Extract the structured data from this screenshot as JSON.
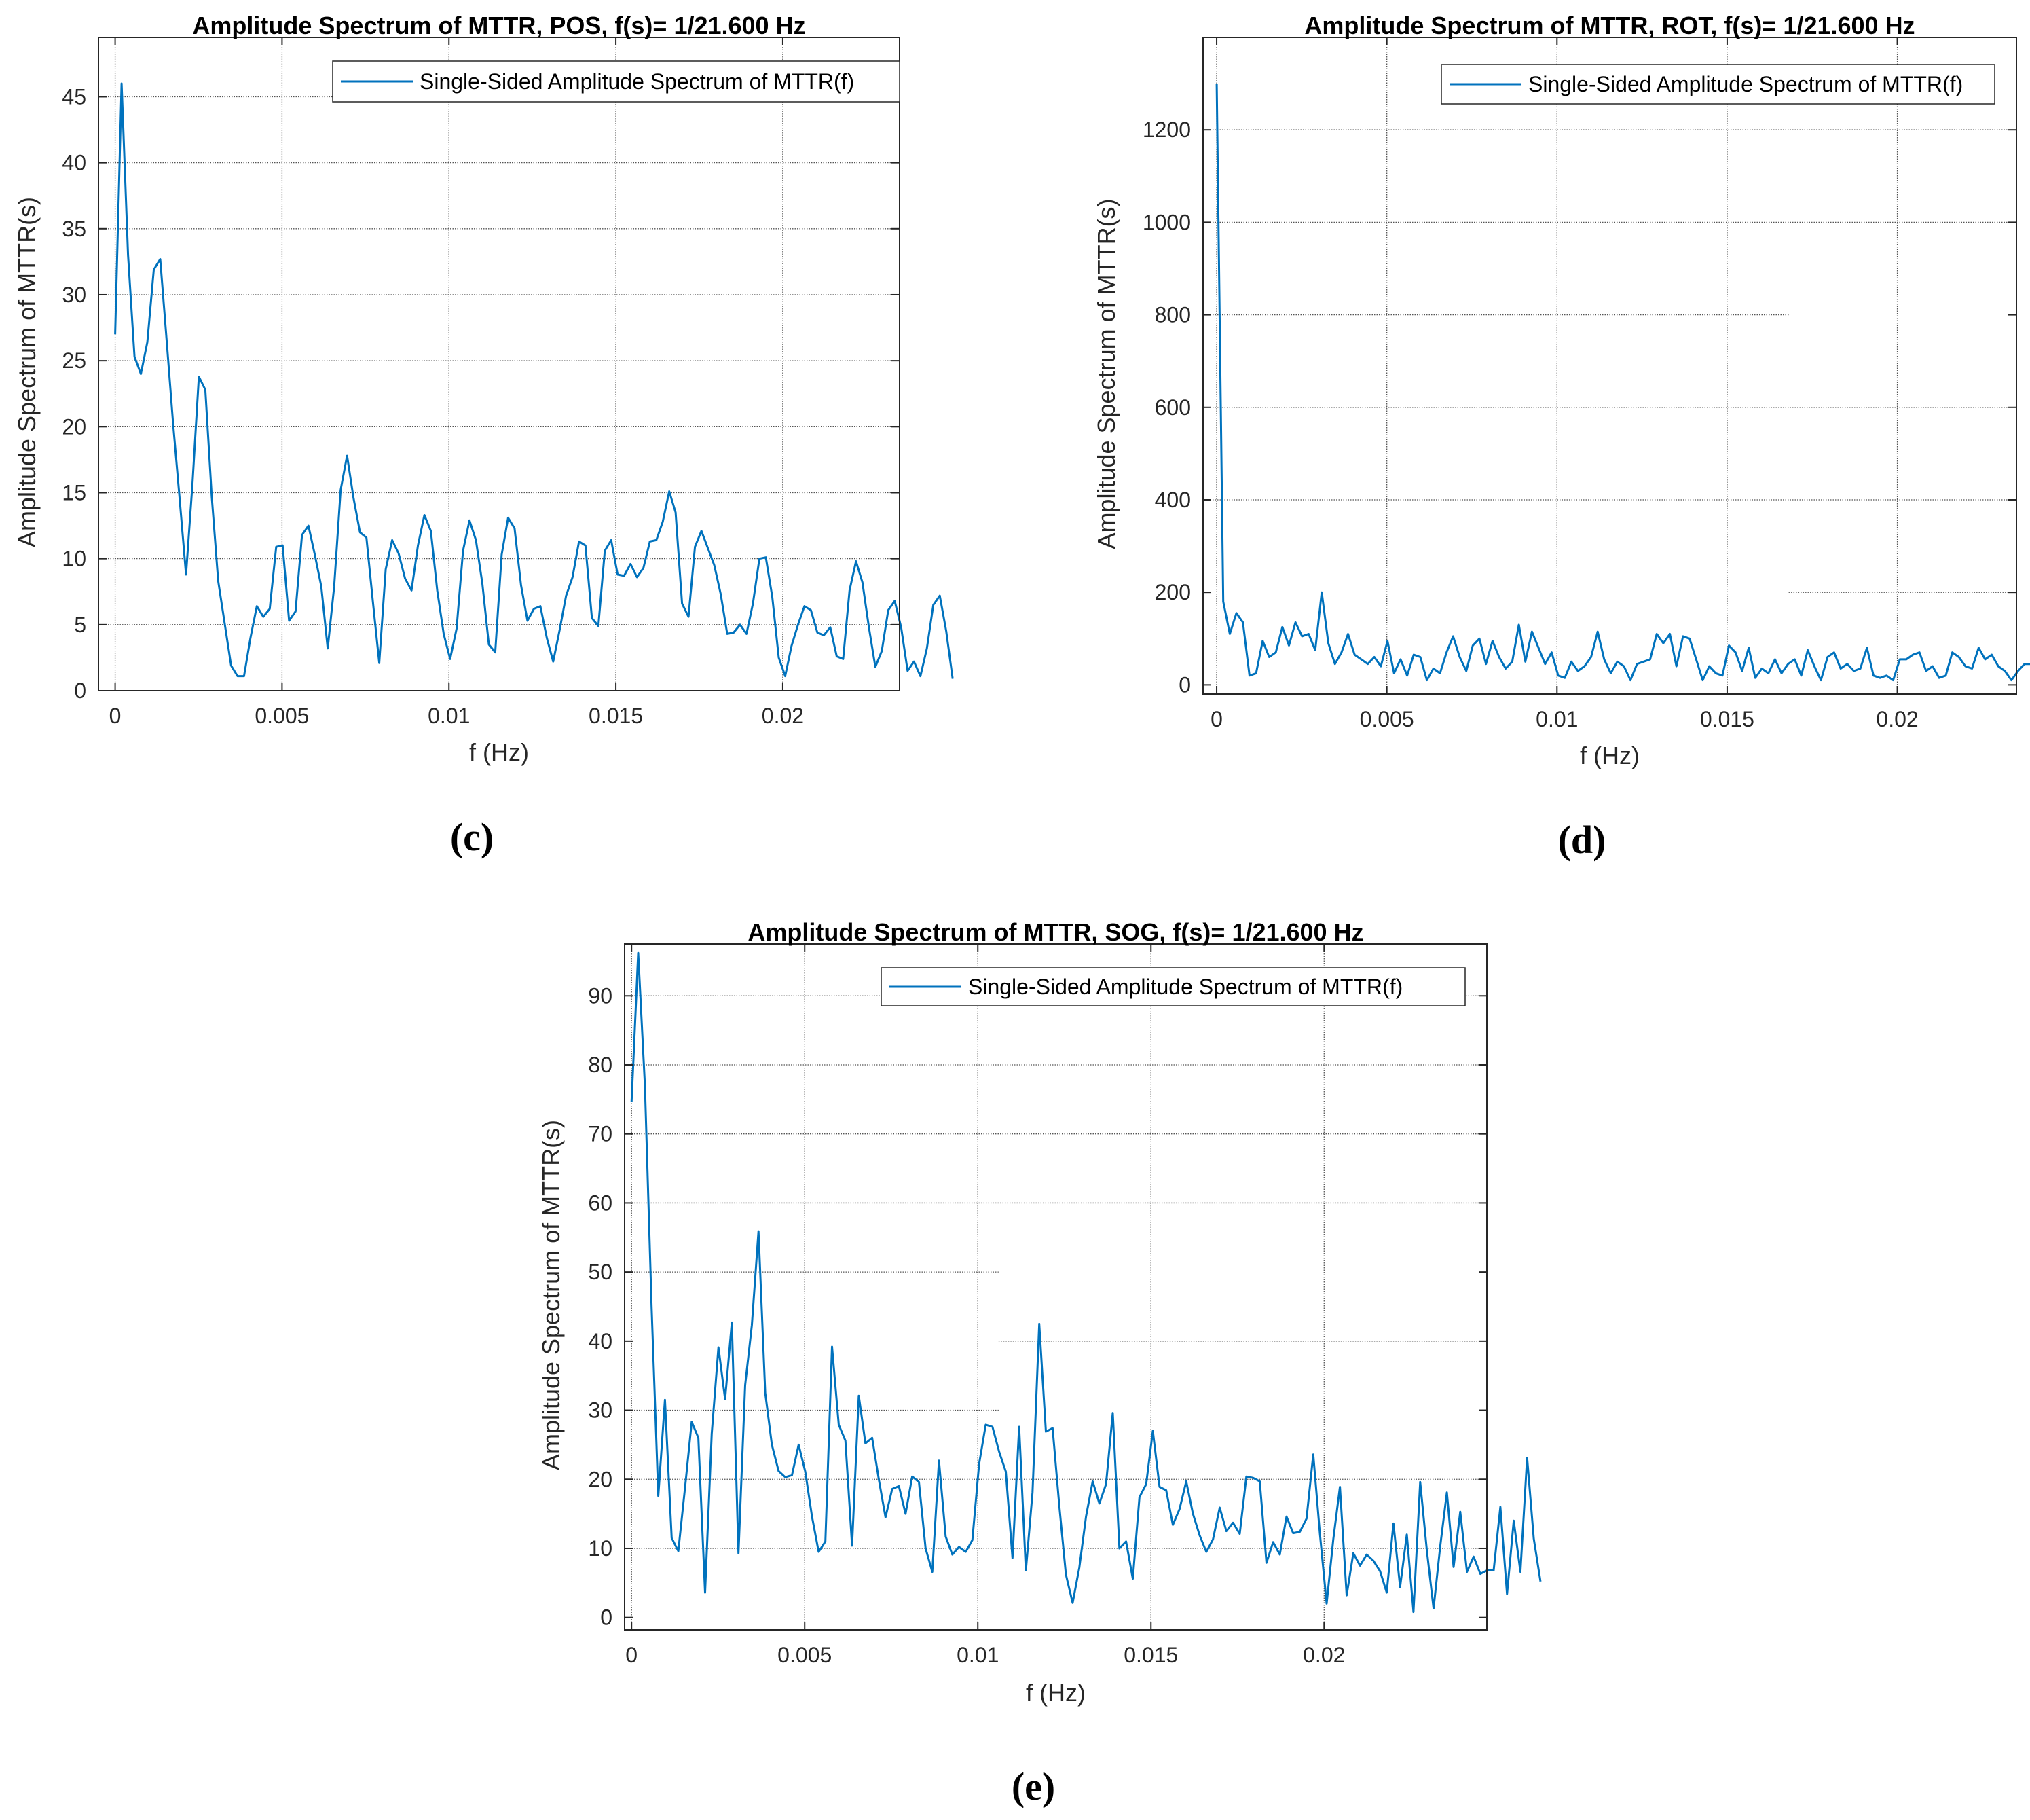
{
  "colors": {
    "line": "#0072BD",
    "axes": "#262626",
    "grid": "#555555"
  },
  "chart_data": [
    {
      "panel": "(c)",
      "type": "line",
      "title": "Amplitude Spectrum of MTTR, POS, f(s)= 1/21.600 Hz",
      "xlabel": "f (Hz)",
      "ylabel": "Amplitude Spectrum of MTTR(s)",
      "xlim": [
        -0.0005,
        0.0235
      ],
      "ylim": [
        0,
        49.5
      ],
      "xticks": [
        0,
        0.005,
        0.01,
        0.015,
        0.02
      ],
      "xtick_labels": [
        "0",
        "0.005",
        "0.01",
        "0.015",
        "0.02"
      ],
      "yticks": [
        0,
        5,
        10,
        15,
        20,
        25,
        30,
        35,
        40,
        45
      ],
      "ytick_labels": [
        "0",
        "5",
        "10",
        "15",
        "20",
        "25",
        "30",
        "35",
        "40",
        "45"
      ],
      "legend": "Single-Sided Amplitude Spectrum of MTTR(f)",
      "legend_position": "top-right",
      "grid": true,
      "series": [
        {
          "name": "Single-Sided Amplitude Spectrum of MTTR(f)",
          "x_start": 0,
          "x_step": 0.000193,
          "values": [
            27,
            46,
            33,
            25.3,
            24,
            26.4,
            31.9,
            32.7,
            26.5,
            20.2,
            14.6,
            8.8,
            15.7,
            23.8,
            22.8,
            14.7,
            8.3,
            5.1,
            1.9,
            1.1,
            1.1,
            4,
            6.4,
            5.6,
            6.2,
            10.9,
            11,
            5.3,
            6,
            11.8,
            12.5,
            10.3,
            7.9,
            3.2,
            7.9,
            15.2,
            17.8,
            14.6,
            12,
            11.6,
            6.8,
            2.1,
            9.2,
            11.4,
            10.4,
            8.5,
            7.6,
            11,
            13.3,
            12.1,
            7.6,
            4.3,
            2.4,
            4.7,
            10.6,
            12.9,
            11.4,
            8.1,
            3.5,
            2.9,
            10.3,
            13.1,
            12.3,
            8,
            5.3,
            6.2,
            6.4,
            4,
            2.2,
            4.6,
            7.2,
            8.6,
            11.3,
            11,
            5.5,
            4.9,
            10.6,
            11.4,
            8.8,
            8.7,
            9.6,
            8.6,
            9.3,
            11.3,
            11.4,
            12.8,
            15.1,
            13.5,
            6.6,
            5.6,
            10.9,
            12.1,
            10.8,
            9.5,
            7.3,
            4.3,
            4.4,
            5,
            4.3,
            6.6,
            10,
            10.1,
            7.1,
            2.5,
            1.1,
            3.4,
            5,
            6.4,
            6.1,
            4.4,
            4.2,
            4.8,
            2.6,
            2.4,
            7.6,
            9.8,
            8.2,
            4.8,
            1.8,
            3,
            6.1,
            6.8,
            4.8,
            1.5,
            2.2,
            1.1,
            3.2,
            6.5,
            7.2,
            4.5,
            0.9
          ]
        }
      ],
      "panel_label": "(c)"
    },
    {
      "panel": "(d)",
      "type": "line",
      "title": "Amplitude Spectrum of MTTR, ROT, f(s)= 1/21.600 Hz",
      "xlabel": "f (Hz)",
      "ylabel": "Amplitude Spectrum of MTTR(s)",
      "xlim": [
        -0.0004,
        0.0235
      ],
      "ylim": [
        -20,
        1400
      ],
      "xticks": [
        0,
        0.005,
        0.01,
        0.015,
        0.02
      ],
      "xtick_labels": [
        "0",
        "0.005",
        "0.01",
        "0.015",
        "0.02"
      ],
      "yticks": [
        0,
        200,
        400,
        600,
        800,
        1000,
        1200
      ],
      "ytick_labels": [
        "0",
        "200",
        "400",
        "600",
        "800",
        "1000",
        "1200"
      ],
      "legend": "Single-Sided Amplitude Spectrum of MTTR(f)",
      "legend_position": "top-right",
      "grid": true,
      "series": [
        {
          "name": "Single-Sided Amplitude Spectrum of MTTR(f)",
          "x_start": 0,
          "x_step": 0.000193,
          "values": [
            1300,
            180,
            110,
            155,
            135,
            20,
            25,
            95,
            60,
            70,
            125,
            85,
            135,
            105,
            110,
            75,
            200,
            90,
            45,
            70,
            110,
            65,
            55,
            45,
            60,
            40,
            95,
            25,
            55,
            20,
            65,
            60,
            10,
            35,
            25,
            70,
            105,
            60,
            30,
            85,
            100,
            45,
            95,
            60,
            35,
            50,
            130,
            50,
            115,
            80,
            45,
            70,
            20,
            15,
            50,
            30,
            40,
            60,
            115,
            55,
            25,
            50,
            40,
            10,
            45,
            50,
            55,
            110,
            90,
            110,
            40,
            105,
            100,
            55,
            10,
            40,
            25,
            20,
            85,
            70,
            30,
            80,
            15,
            35,
            25,
            55,
            25,
            45,
            55,
            20,
            75,
            40,
            10,
            60,
            70,
            35,
            45,
            30,
            35,
            80,
            20,
            15,
            20,
            10,
            55,
            55,
            65,
            70,
            30,
            40,
            15,
            20,
            70,
            60,
            40,
            35,
            80,
            55,
            65,
            40,
            30,
            10,
            30,
            45,
            45,
            40,
            30
          ]
        }
      ],
      "panel_label": "(d)"
    },
    {
      "panel": "(e)",
      "type": "line",
      "title": "Amplitude Spectrum of MTTR, SOG, f(s)= 1/21.600 Hz",
      "xlabel": "f (Hz)",
      "ylabel": "Amplitude Spectrum of MTTR(s)",
      "xlim": [
        -0.0002,
        0.0247
      ],
      "ylim": [
        -1.8,
        97.5
      ],
      "xticks": [
        0,
        0.005,
        0.01,
        0.015,
        0.02
      ],
      "xtick_labels": [
        "0",
        "0.005",
        "0.01",
        "0.015",
        "0.02"
      ],
      "yticks": [
        0,
        10,
        20,
        30,
        40,
        50,
        60,
        70,
        80,
        90
      ],
      "ytick_labels": [
        "0",
        "10",
        "20",
        "30",
        "40",
        "50",
        "60",
        "70",
        "80",
        "90"
      ],
      "legend": "Single-Sided Amplitude Spectrum of MTTR(f)",
      "legend_position": "top-right",
      "grid": true,
      "series": [
        {
          "name": "Single-Sided Amplitude Spectrum of MTTR(f)",
          "x_start": 0,
          "x_step": 0.000193,
          "values": [
            74.6,
            96.2,
            77,
            45,
            17.6,
            31.5,
            11.5,
            9.6,
            18.8,
            28.3,
            26,
            3.6,
            26.6,
            39.1,
            31.6,
            42.7,
            9.3,
            33.6,
            42.3,
            55.9,
            32.5,
            25,
            21.2,
            20.3,
            20.6,
            25,
            21.1,
            14.6,
            9.5,
            11,
            39.2,
            27.9,
            25.6,
            10.4,
            32.1,
            25.2,
            26,
            20,
            14.5,
            18.6,
            19,
            15,
            20.4,
            19.6,
            10,
            6.6,
            22.7,
            11.7,
            9.1,
            10.2,
            9.5,
            11.2,
            22.2,
            27.9,
            27.6,
            24,
            21.1,
            8.6,
            27.6,
            6.8,
            18.1,
            42.5,
            26.9,
            27.4,
            16.2,
            6.2,
            2.1,
            7.2,
            14.6,
            19.7,
            16.5,
            19.3,
            29.6,
            10,
            11,
            5.6,
            17.4,
            19.3,
            27,
            18.9,
            18.4,
            13.4,
            15.7,
            19.7,
            15,
            11.9,
            9.5,
            11.3,
            15.9,
            12.5,
            13.7,
            12.1,
            20.4,
            20.2,
            19.7,
            7.9,
            10.9,
            9.1,
            14.6,
            12.2,
            12.4,
            14.3,
            23.6,
            12.1,
            2,
            11.3,
            18.9,
            3.2,
            9.3,
            7.5,
            9.1,
            8.2,
            6.7,
            3.6,
            13.6,
            4.4,
            12,
            0.8,
            19.6,
            9.7,
            1.3,
            10.3,
            18.1,
            7.3,
            15.3,
            6.6,
            8.8,
            6.3,
            6.8,
            6.8,
            16,
            3.4,
            14,
            6.6,
            23.1,
            11.4,
            5.2
          ]
        }
      ],
      "panel_label": "(e)"
    }
  ]
}
